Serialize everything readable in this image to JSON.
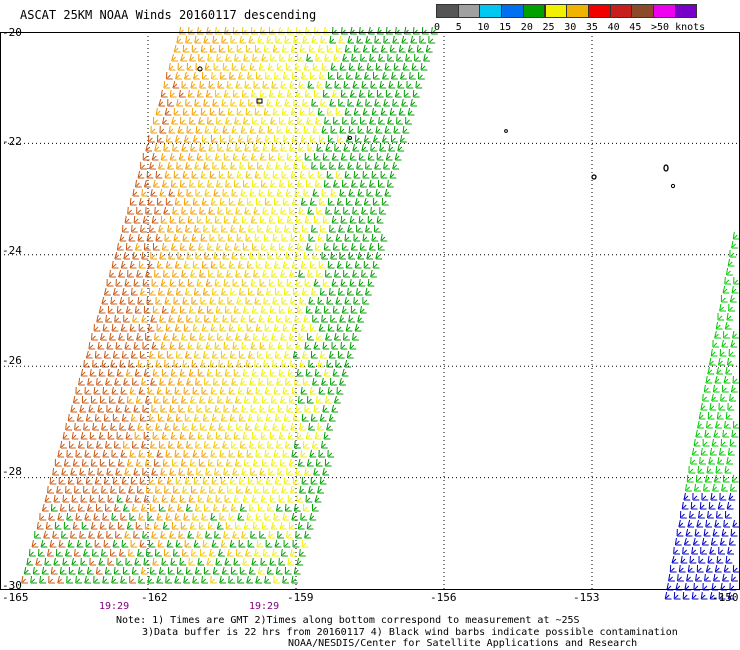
{
  "title": "ASCAT 25KM NOAA Winds 20160117 descending",
  "legend": {
    "items": [
      {
        "label": "0",
        "color": "#555555"
      },
      {
        "label": "5",
        "color": "#a0a0a0"
      },
      {
        "label": "10",
        "color": "#00c8f0"
      },
      {
        "label": "15",
        "color": "#0070f0"
      },
      {
        "label": "20",
        "color": "#00a000"
      },
      {
        "label": "25",
        "color": "#f0f000"
      },
      {
        "label": "30",
        "color": "#f0b400"
      },
      {
        "label": "35",
        "color": "#f00000"
      },
      {
        "label": "40",
        "color": "#c81e1e"
      },
      {
        "label": "45",
        "color": "#8b4a2a"
      },
      {
        "label": ">50 knots",
        "color": "#f000f0"
      },
      {
        "label": "",
        "color": "#7800c8"
      }
    ]
  },
  "axes": {
    "lat_labels": [
      "-20",
      "-22",
      "-24",
      "-26",
      "-28",
      "-30"
    ],
    "lon_labels": [
      "-165",
      "-162",
      "-159",
      "-156",
      "-153",
      "-150"
    ],
    "lat_range": [
      -30,
      -20
    ],
    "lon_range": [
      -165,
      -150
    ],
    "grid": "dotted"
  },
  "pass_times": [
    "19:29",
    "19:29"
  ],
  "swaths": [
    {
      "name": "main",
      "colors": [
        "#c85a14",
        "#f0a000",
        "#f0c800",
        "#f0f000",
        "#00a000"
      ]
    },
    {
      "name": "east",
      "colors": [
        "#00c800",
        "#0000c0"
      ]
    }
  ],
  "notes": [
    "Note: 1) Times are GMT 2)Times along bottom correspond to measurement at ~25S",
    "3)Data buffer is 22 hrs from 20160117 4) Black wind barbs indicate possible contamination",
    "NOAA/NESDIS/Center for Satellite Applications and Research"
  ]
}
